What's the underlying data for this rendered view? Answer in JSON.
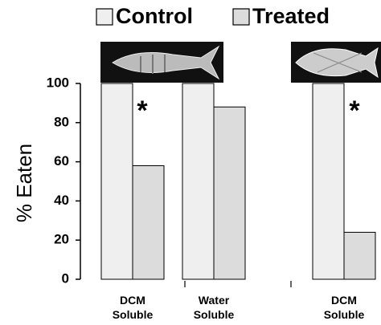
{
  "chart_data": {
    "type": "bar",
    "y_label": "% Eaten",
    "categories": [
      "DCM Soluble",
      "Water Soluble",
      "DCM Soluble"
    ],
    "series": [
      {
        "name": "Control",
        "color": "#efefef",
        "values": [
          100,
          100,
          100
        ]
      },
      {
        "name": "Treated",
        "color": "#dcdcdc",
        "values": [
          58,
          88,
          24
        ]
      }
    ],
    "ylim": [
      0,
      100
    ],
    "yticks": [
      0,
      20,
      40,
      60,
      80,
      100
    ],
    "annotations": [
      "*",
      "*"
    ]
  }
}
